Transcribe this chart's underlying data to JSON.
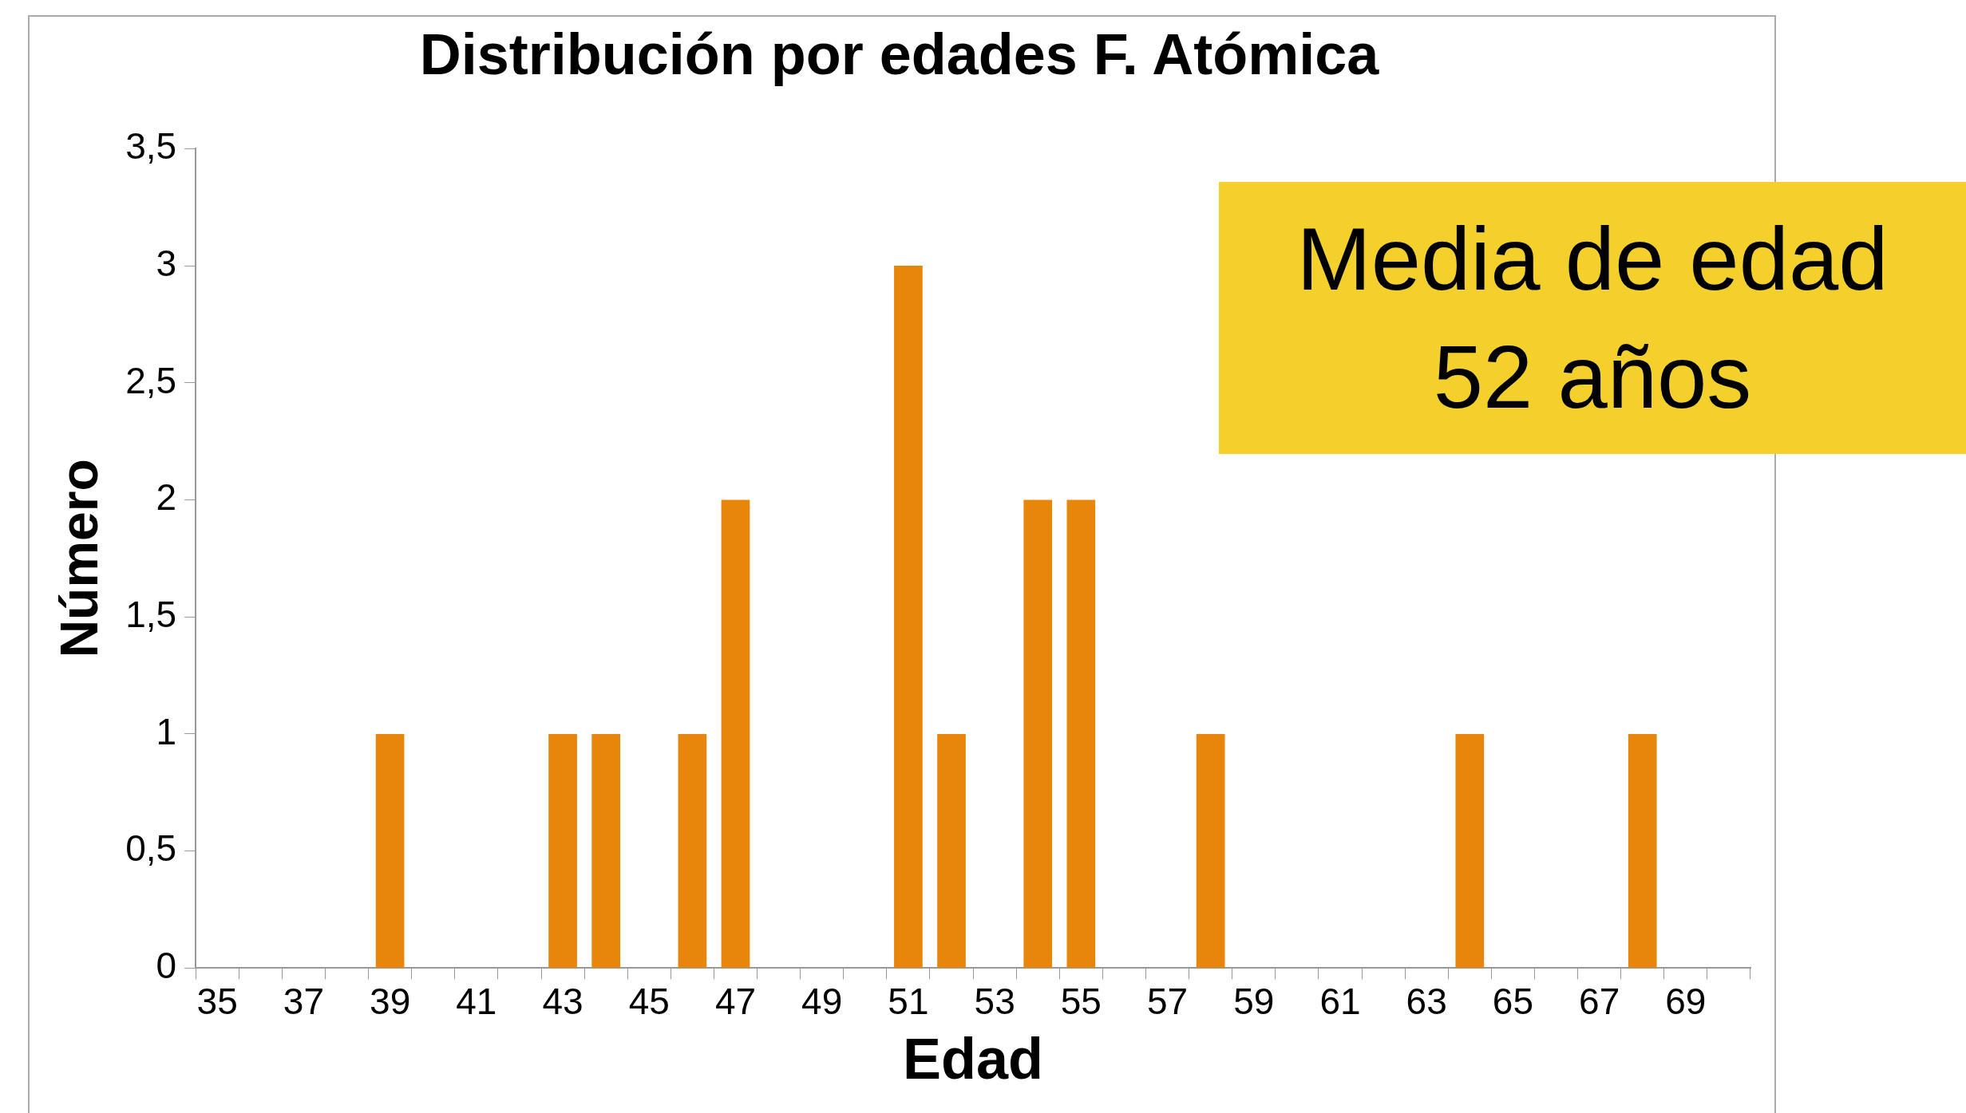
{
  "chart_data": {
    "type": "bar",
    "title": "Distribución por edades F. Atómica",
    "xlabel": "Edad",
    "ylabel": "Número",
    "categories": [
      "35",
      null,
      "37",
      null,
      "39",
      null,
      "41",
      null,
      "43",
      null,
      "45",
      null,
      "47",
      null,
      "49",
      null,
      "51",
      null,
      "53",
      null,
      "55",
      null,
      "57",
      null,
      "59",
      null,
      "61",
      null,
      "63",
      null,
      "65",
      null,
      "67",
      null,
      "69",
      null
    ],
    "values": [
      0,
      0,
      0,
      0,
      1,
      0,
      0,
      0,
      1,
      1,
      0,
      1,
      2,
      0,
      0,
      0,
      3,
      1,
      0,
      2,
      2,
      0,
      0,
      1,
      0,
      0,
      0,
      0,
      0,
      1,
      0,
      0,
      0,
      1,
      0,
      0
    ],
    "color": "#e8860b",
    "ylim": [
      0,
      3.5
    ],
    "yticks": [
      0,
      {
        "value": 0.5,
        "label": "0,5"
      },
      1,
      {
        "value": 1.5,
        "label": "1,5"
      },
      2,
      {
        "value": 2.5,
        "label": "2,5"
      },
      3,
      {
        "value": 3.5,
        "label": "3,5"
      }
    ],
    "grid": false,
    "legend": false,
    "annotations": [
      "Media de edad\n52 años"
    ]
  }
}
